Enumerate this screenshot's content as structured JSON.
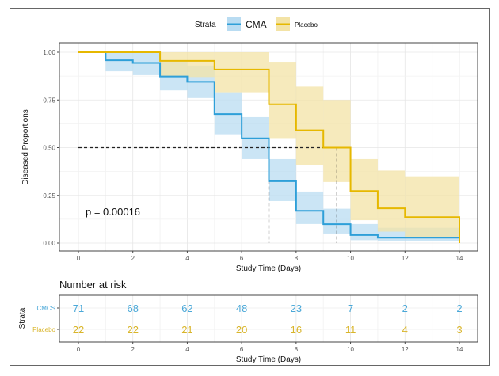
{
  "chart_data": {
    "type": "line",
    "subtype": "kaplan-meier-step",
    "xlabel": "Study Time (Days)",
    "ylabel": "Diseased Proportions",
    "xlim": [
      0,
      14
    ],
    "ylim": [
      0,
      1
    ],
    "x_ticks": [
      "0",
      "2",
      "4",
      "6",
      "8",
      "10",
      "12",
      "14"
    ],
    "y_ticks": [
      "0.00",
      "0.25",
      "0.50",
      "0.75",
      "1.00"
    ],
    "grid": true,
    "legend": {
      "title": "Strata",
      "placement": "top",
      "entries": [
        {
          "name": "CMA",
          "color": "#2e9fd8"
        },
        {
          "name": "Placebo",
          "color": "#e6b800"
        }
      ]
    },
    "annotation": "p = 0.00016",
    "median_lines": {
      "y": 0.5,
      "x_values": [
        7,
        9.5
      ]
    },
    "series": [
      {
        "name": "CMA",
        "color": "#2e9fd8",
        "band_color": "#b9dcf2",
        "x": [
          0,
          1,
          2,
          3,
          4,
          5,
          6,
          7,
          8,
          9,
          10,
          11,
          14
        ],
        "y": [
          1.0,
          0.958,
          0.944,
          0.873,
          0.845,
          0.676,
          0.549,
          0.324,
          0.169,
          0.099,
          0.042,
          0.028,
          0.028
        ],
        "lower": [
          1.0,
          0.9,
          0.88,
          0.8,
          0.76,
          0.57,
          0.44,
          0.22,
          0.1,
          0.05,
          0.015,
          0.01,
          0.01
        ],
        "upper": [
          1.0,
          1.0,
          1.0,
          0.95,
          0.93,
          0.79,
          0.66,
          0.44,
          0.27,
          0.18,
          0.1,
          0.08,
          0.08
        ]
      },
      {
        "name": "Placebo",
        "color": "#e6b800",
        "band_color": "#f3e3a6",
        "x": [
          0,
          3,
          5,
          7,
          8,
          9,
          10,
          11,
          12,
          14
        ],
        "y": [
          1.0,
          0.955,
          0.909,
          0.727,
          0.591,
          0.5,
          0.273,
          0.182,
          0.136,
          0.136
        ],
        "lower": [
          1.0,
          0.87,
          0.79,
          0.55,
          0.41,
          0.32,
          0.12,
          0.06,
          0.03,
          0.03
        ],
        "upper": [
          1.0,
          1.0,
          1.0,
          0.95,
          0.82,
          0.75,
          0.44,
          0.38,
          0.35,
          0.35
        ]
      }
    ],
    "risk_table": {
      "title": "Number at risk",
      "ylabel": "Strata",
      "xlabel": "Study Time (Days)",
      "times": [
        0,
        2,
        4,
        6,
        8,
        10,
        12,
        14
      ],
      "rows": [
        {
          "label": "CMCS",
          "color": "#4aa8d8",
          "values": [
            71,
            68,
            62,
            48,
            23,
            7,
            2,
            2
          ]
        },
        {
          "label": "Placebo",
          "color": "#d9b52a",
          "values": [
            22,
            22,
            21,
            20,
            16,
            11,
            4,
            3
          ]
        }
      ]
    }
  }
}
